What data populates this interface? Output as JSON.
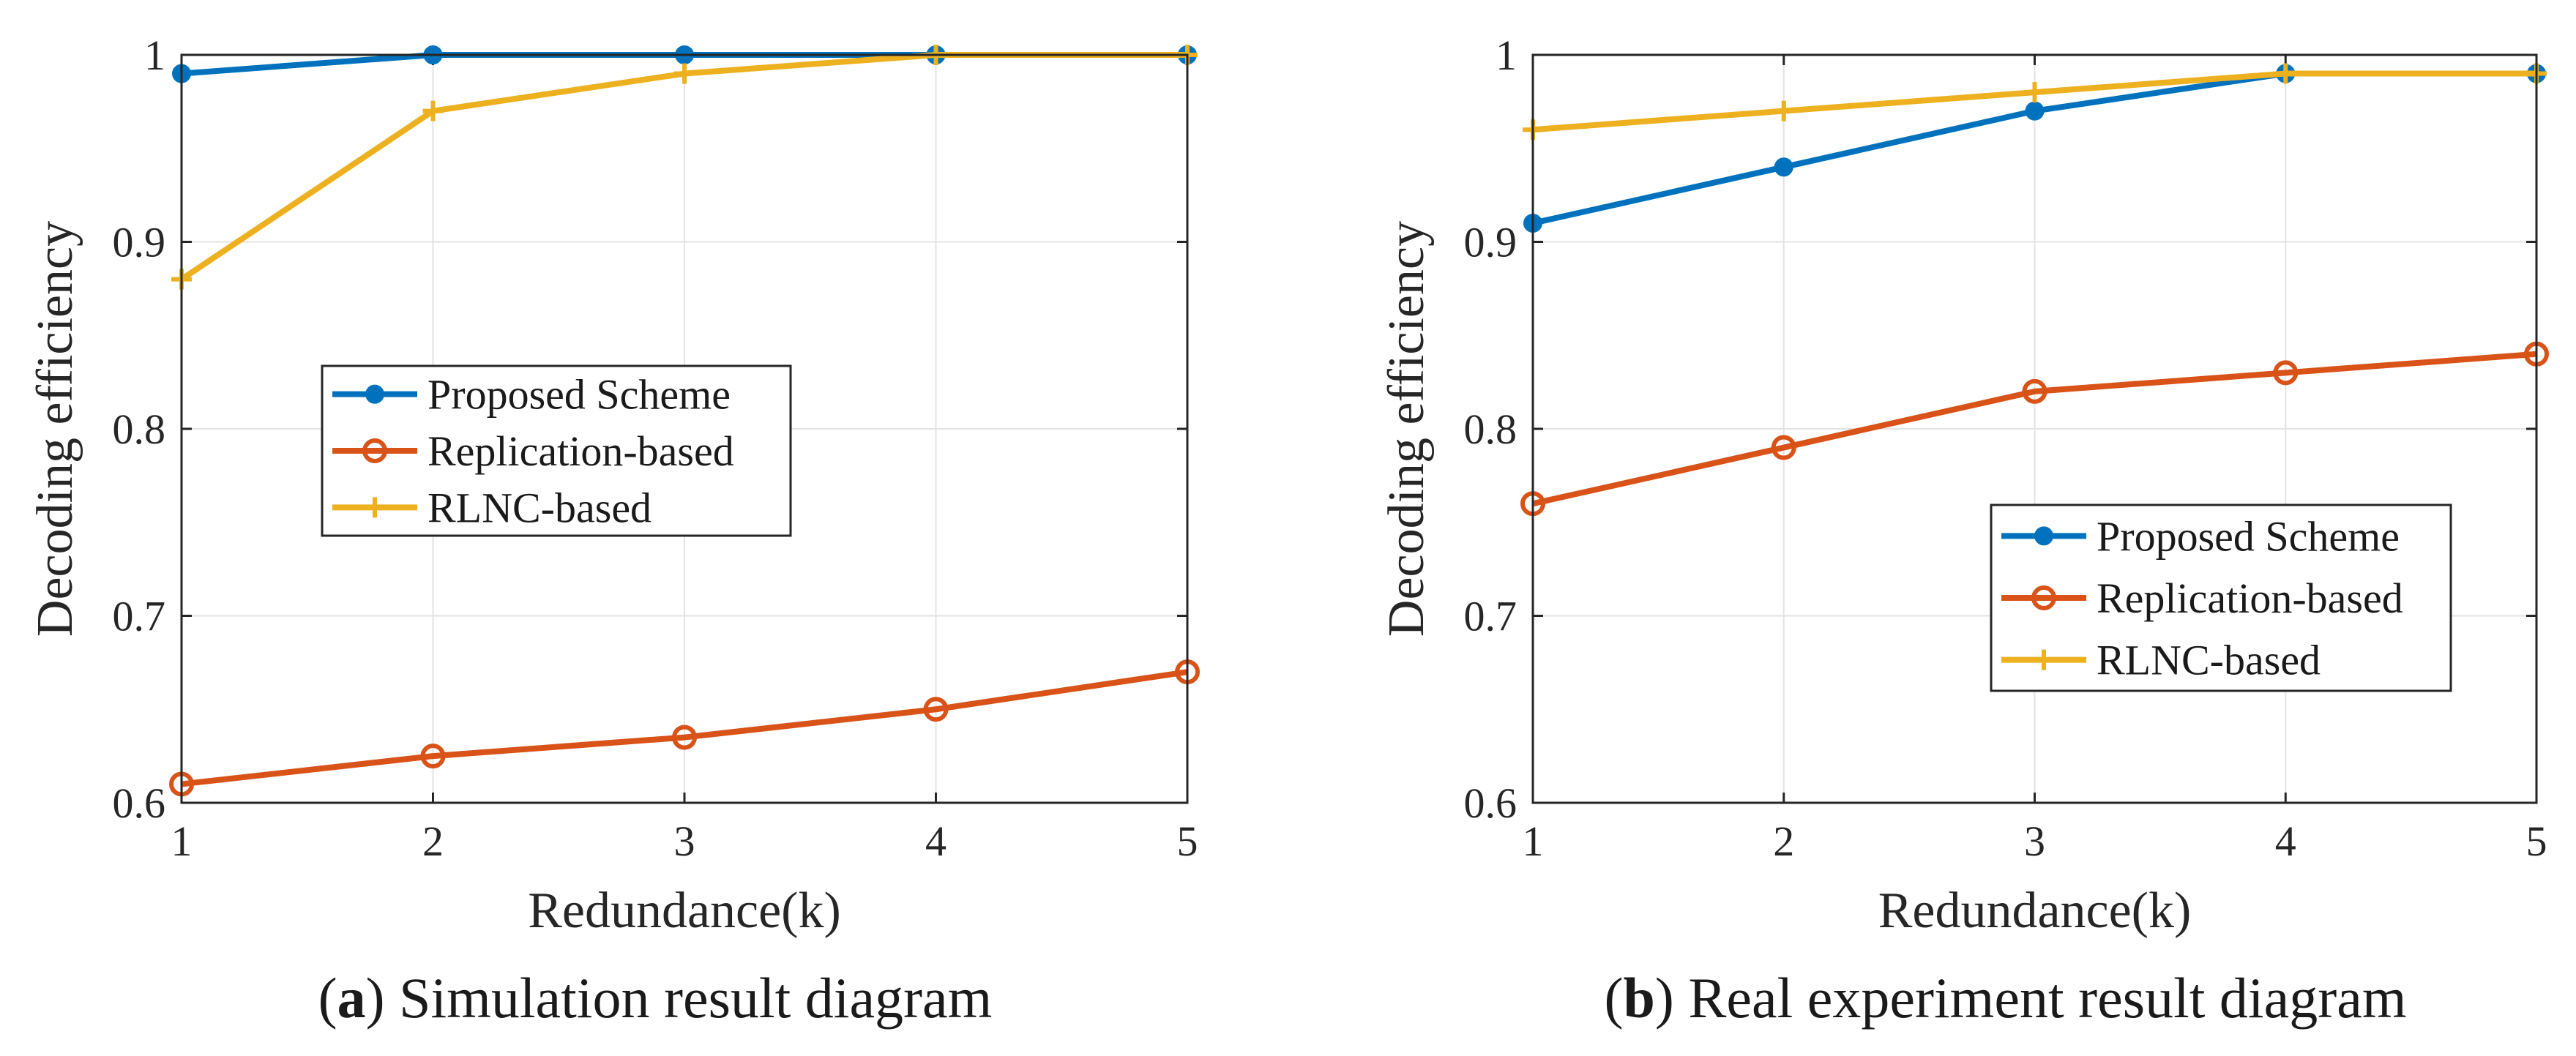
{
  "chart_data": [
    {
      "type": "line",
      "title": "",
      "panel_label": "a",
      "caption": "Simulation result diagram",
      "xlabel": "Redundance(k)",
      "ylabel": "Decoding efficiency",
      "x": [
        1,
        2,
        3,
        4,
        5
      ],
      "xlim": [
        1,
        5
      ],
      "ylim": [
        0.6,
        1.0
      ],
      "xticks": [
        "1",
        "2",
        "3",
        "4",
        "5"
      ],
      "yticks": [
        "0.6",
        "0.7",
        "0.8",
        "0.9",
        "1"
      ],
      "grid": true,
      "legend_position": "center-left",
      "series": [
        {
          "name": "Proposed Scheme",
          "values": [
            0.99,
            1.0,
            1.0,
            1.0,
            1.0
          ],
          "color": "#0072BD",
          "marker": "dot"
        },
        {
          "name": "Replication-based",
          "values": [
            0.61,
            0.625,
            0.635,
            0.65,
            0.67
          ],
          "color": "#D95319",
          "marker": "circle"
        },
        {
          "name": "RLNC-based",
          "values": [
            0.88,
            0.97,
            0.99,
            1.0,
            1.0
          ],
          "color": "#EDB120",
          "marker": "plus"
        }
      ]
    },
    {
      "type": "line",
      "title": "",
      "panel_label": "b",
      "caption": "Real experiment result diagram",
      "xlabel": "Redundance(k)",
      "ylabel": "Decoding efficiency",
      "x": [
        1,
        2,
        3,
        4,
        5
      ],
      "xlim": [
        1,
        5
      ],
      "ylim": [
        0.6,
        1.0
      ],
      "xticks": [
        "1",
        "2",
        "3",
        "4",
        "5"
      ],
      "yticks": [
        "0.6",
        "0.7",
        "0.8",
        "0.9",
        "1"
      ],
      "grid": true,
      "legend_position": "bottom-right",
      "series": [
        {
          "name": "Proposed Scheme",
          "values": [
            0.91,
            0.94,
            0.97,
            0.99,
            0.99
          ],
          "color": "#0072BD",
          "marker": "dot"
        },
        {
          "name": "Replication-based",
          "values": [
            0.76,
            0.79,
            0.82,
            0.83,
            0.84
          ],
          "color": "#D95319",
          "marker": "circle"
        },
        {
          "name": "RLNC-based",
          "values": [
            0.96,
            0.97,
            0.98,
            0.99,
            0.99
          ],
          "color": "#EDB120",
          "marker": "plus"
        }
      ]
    }
  ]
}
